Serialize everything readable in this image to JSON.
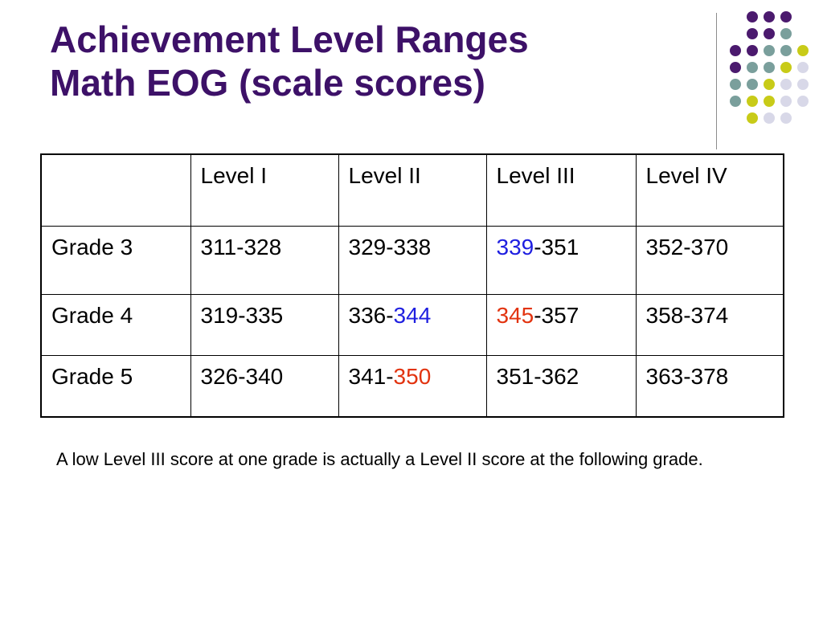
{
  "slide": {
    "title_line1": "Achievement Level Ranges",
    "title_line2": "Math EOG (scale scores)"
  },
  "colors": {
    "title": "#3d1168",
    "highlight_blue": "#1f1fe0",
    "highlight_red": "#e2330f",
    "dot_purple": "#4b1a6e",
    "dot_teal": "#7a9f9c",
    "dot_lime": "#c8cb18",
    "dot_lavender": "#d8d8e8"
  },
  "table": {
    "columns": [
      "",
      "Level I",
      "Level II",
      "Level III",
      "Level IV"
    ],
    "rows": [
      {
        "grade": "Grade 3",
        "level1": "311-328",
        "level2": "329-338",
        "level3_highlight": "339",
        "level3_rest": "-351",
        "level4": "352-370"
      },
      {
        "grade": "Grade 4",
        "level1": "319-335",
        "level2_prefix": "336-",
        "level2_highlight": "344",
        "level3_highlight": "345",
        "level3_rest": "-357",
        "level4": "358-374"
      },
      {
        "grade": "Grade 5",
        "level1": "326-340",
        "level2_prefix": "341-",
        "level2_highlight": "350",
        "level3": "351-362",
        "level4": "363-378"
      }
    ]
  },
  "note": "A low Level III score at one grade is actually a Level II score at the following grade."
}
